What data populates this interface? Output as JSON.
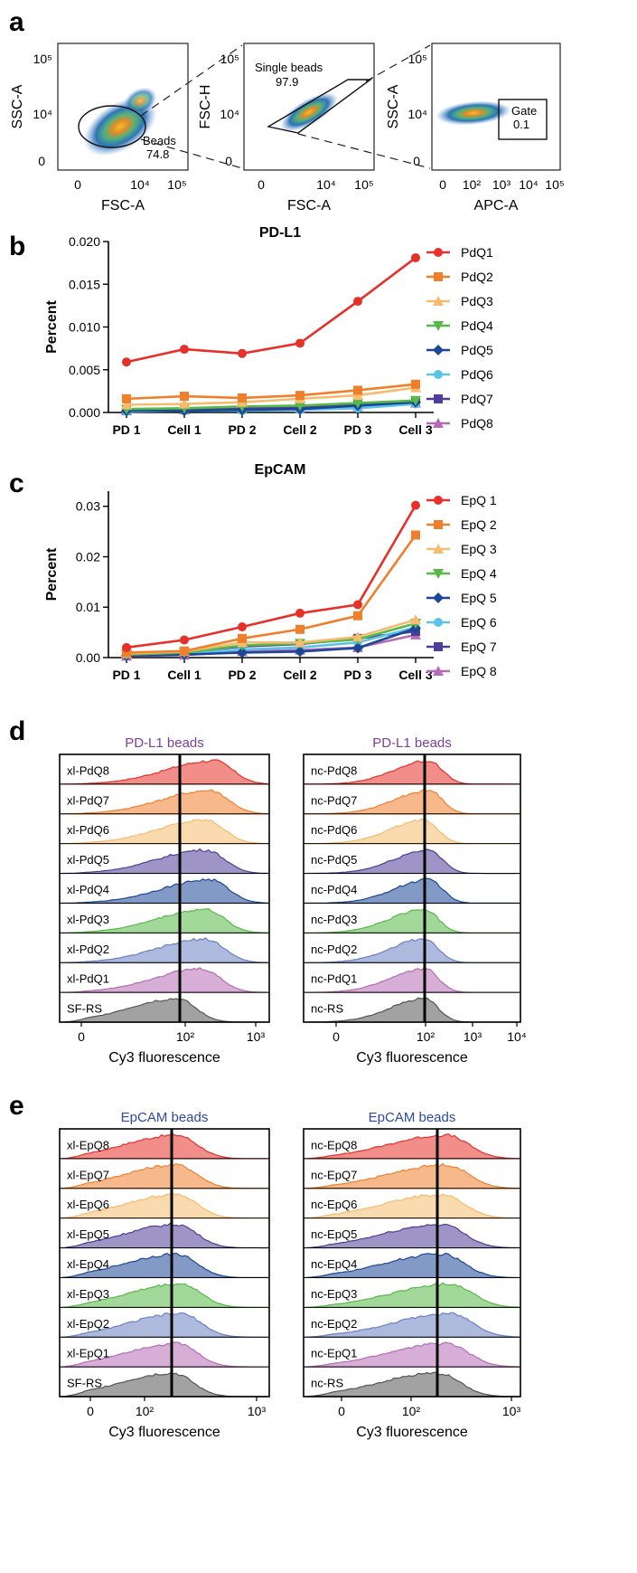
{
  "panel_labels": [
    "a",
    "b",
    "c",
    "d",
    "e"
  ],
  "colors": {
    "q1": "#e5312a",
    "q2": "#f07f2c",
    "q3": "#f5bb6e",
    "q4": "#58b848",
    "q5": "#1c4796",
    "q6": "#5cc3e8",
    "q7": "#4e3e98",
    "q8": "#b56bb5",
    "ctrl": "#555555",
    "panel_title_d": "#7a3f9b",
    "panel_title_e": "#2e4a9c"
  },
  "panel_a": {
    "plots": [
      {
        "ylabel": "SSC-A",
        "xlabel": "FSC-A",
        "yticks": [
          "10⁵",
          "10⁴",
          "0"
        ],
        "xticks": [
          "0",
          "10⁴",
          "10⁵"
        ],
        "gate_label": "Beads",
        "gate_value": "74.8"
      },
      {
        "ylabel": "FSC-H",
        "xlabel": "FSC-A",
        "yticks": [
          "10⁵",
          "10⁴",
          "0"
        ],
        "xticks": [
          "0",
          "10⁴",
          "10⁵"
        ],
        "gate_label": "Single beads",
        "gate_value": "97.9"
      },
      {
        "ylabel": "SSC-A",
        "xlabel": "APC-A",
        "yticks": [
          "10⁵",
          "10⁴",
          "0"
        ],
        "xticks": [
          "0",
          "10²",
          "10³",
          "10⁴",
          "10⁵"
        ],
        "gate_label": "Gate",
        "gate_value": "0.1"
      }
    ]
  },
  "chart_data": [
    {
      "type": "line",
      "panel": "b",
      "title": "PD-L1",
      "ylabel": "Percent",
      "xlabel": "",
      "categories": [
        "PD 1",
        "Cell 1",
        "PD 2",
        "Cell 2",
        "PD 3",
        "Cell 3"
      ],
      "ylim": [
        0,
        0.02
      ],
      "yticks": [
        "0.000",
        "0.005",
        "0.010",
        "0.015",
        "0.020"
      ],
      "yticks_values": [
        0,
        0.005,
        0.01,
        0.015,
        0.02
      ],
      "series": [
        {
          "name": "PdQ1",
          "marker": "circle",
          "color": "#e5312a",
          "values": [
            0.0059,
            0.0074,
            0.0069,
            0.0081,
            0.013,
            0.0181
          ]
        },
        {
          "name": "PdQ2",
          "marker": "square",
          "color": "#f07f2c",
          "values": [
            0.0016,
            0.0019,
            0.0017,
            0.002,
            0.0026,
            0.0033
          ]
        },
        {
          "name": "PdQ3",
          "marker": "triangle",
          "color": "#f5bb6e",
          "values": [
            0.0009,
            0.001,
            0.0012,
            0.0016,
            0.002,
            0.0029
          ]
        },
        {
          "name": "PdQ4",
          "marker": "tridown",
          "color": "#58b848",
          "values": [
            0.0004,
            0.0005,
            0.0007,
            0.0008,
            0.0011,
            0.0014
          ]
        },
        {
          "name": "PdQ5",
          "marker": "diamond",
          "color": "#1c4796",
          "values": [
            0.0002,
            0.0002,
            0.0003,
            0.0004,
            0.0008,
            0.0012
          ]
        },
        {
          "name": "PdQ6",
          "marker": "circle",
          "color": "#5cc3e8",
          "values": [
            0.0001,
            0.0002,
            0.0002,
            0.0003,
            0.0005,
            0.001
          ]
        },
        {
          "name": "PdQ7",
          "marker": "square",
          "color": "#4e3e98",
          "values": [
            0.0003,
            0.0004,
            0.0005,
            0.0006,
            0.001,
            0.0013
          ]
        },
        {
          "name": "PdQ8",
          "marker": "triangle",
          "color": "#b56bb5",
          "values": [
            0.0002,
            0.0003,
            0.0004,
            0.0005,
            0.0007,
            0.0011
          ]
        }
      ]
    },
    {
      "type": "line",
      "panel": "c",
      "title": "EpCAM",
      "ylabel": "Percent",
      "xlabel": "",
      "categories": [
        "PD 1",
        "Cell 1",
        "PD 2",
        "Cell 2",
        "PD 3",
        "Cell 3"
      ],
      "ylim": [
        0,
        0.033
      ],
      "yticks": [
        "0.00",
        "0.01",
        "0.02",
        "0.03"
      ],
      "yticks_values": [
        0,
        0.01,
        0.02,
        0.03
      ],
      "series": [
        {
          "name": "EpQ 1",
          "marker": "circle",
          "color": "#e5312a",
          "values": [
            0.002,
            0.0035,
            0.0061,
            0.0088,
            0.0105,
            0.0302
          ]
        },
        {
          "name": "EpQ 2",
          "marker": "square",
          "color": "#f07f2c",
          "values": [
            0.001,
            0.0013,
            0.0038,
            0.0056,
            0.0083,
            0.0243
          ]
        },
        {
          "name": "EpQ 3",
          "marker": "triangle",
          "color": "#f5bb6e",
          "values": [
            0.0008,
            0.0012,
            0.003,
            0.003,
            0.0041,
            0.0075
          ]
        },
        {
          "name": "EpQ 4",
          "marker": "tridown",
          "color": "#58b848",
          "values": [
            0.0006,
            0.001,
            0.0024,
            0.0028,
            0.0036,
            0.0068
          ]
        },
        {
          "name": "EpQ 5",
          "marker": "diamond",
          "color": "#1c4796",
          "values": [
            0.0004,
            0.0006,
            0.001,
            0.0012,
            0.0019,
            0.0058
          ]
        },
        {
          "name": "EpQ 6",
          "marker": "circle",
          "color": "#5cc3e8",
          "values": [
            0.0005,
            0.0008,
            0.0016,
            0.002,
            0.003,
            0.006
          ]
        },
        {
          "name": "EpQ 7",
          "marker": "square",
          "color": "#4e3e98",
          "values": [
            0.0007,
            0.0011,
            0.0022,
            0.0027,
            0.0038,
            0.0052
          ]
        },
        {
          "name": "EpQ 8",
          "marker": "triangle",
          "color": "#b56bb5",
          "values": [
            0.0003,
            0.0005,
            0.0012,
            0.0015,
            0.002,
            0.0045
          ]
        }
      ]
    }
  ],
  "panel_d": {
    "xlabel": "Cy3 fluorescence",
    "left": {
      "title": "PD-L1 beads",
      "rows": [
        "xl-PdQ8",
        "xl-PdQ7",
        "xl-PdQ6",
        "xl-PdQ5",
        "xl-PdQ4",
        "xl-PdQ3",
        "xl-PdQ2",
        "xl-PdQ1",
        "SF-RS"
      ],
      "xticks": [
        "0",
        "10²",
        "10³"
      ]
    },
    "right": {
      "title": "PD-L1 beads",
      "rows": [
        "nc-PdQ8",
        "nc-PdQ7",
        "nc-PdQ6",
        "nc-PdQ5",
        "nc-PdQ4",
        "nc-PdQ3",
        "nc-PdQ2",
        "nc-PdQ1",
        "nc-RS"
      ],
      "xticks": [
        "0",
        "10²",
        "10³",
        "10⁴"
      ]
    }
  },
  "panel_e": {
    "xlabel": "Cy3 fluorescence",
    "left": {
      "title": "EpCAM beads",
      "rows": [
        "xl-EpQ8",
        "xl-EpQ7",
        "xl-EpQ6",
        "xl-EpQ5",
        "xl-EpQ4",
        "xl-EpQ3",
        "xl-EpQ2",
        "xl-EpQ1",
        "SF-RS"
      ],
      "xticks": [
        "0",
        "10²",
        "10³"
      ]
    },
    "right": {
      "title": "EpCAM beads",
      "rows": [
        "nc-EpQ8",
        "nc-EpQ7",
        "nc-EpQ6",
        "nc-EpQ5",
        "nc-EpQ4",
        "nc-EpQ3",
        "nc-EpQ2",
        "nc-EpQ1",
        "nc-RS"
      ],
      "xticks": [
        "0",
        "10²",
        "10³"
      ]
    }
  }
}
